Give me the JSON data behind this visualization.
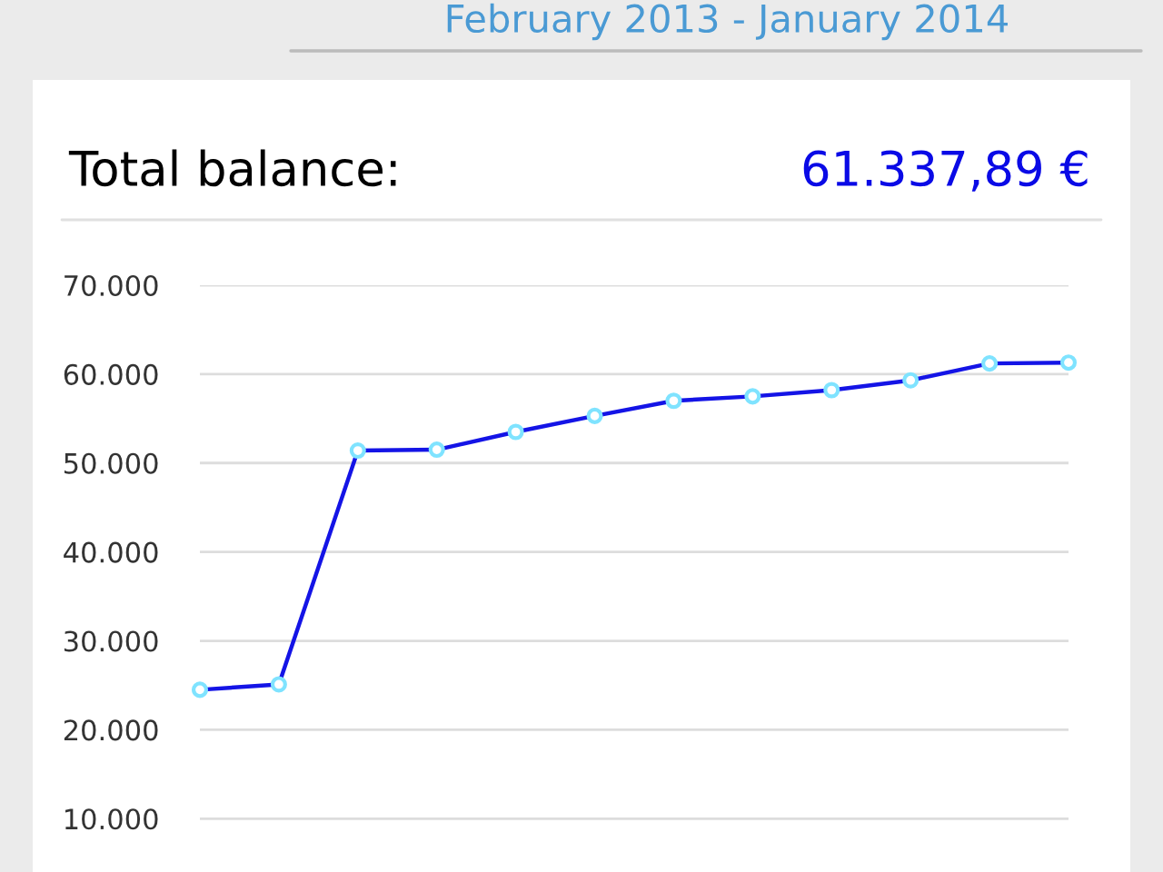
{
  "chart_data": {
    "type": "line",
    "title": "Total balance:",
    "subtitle": "February 2013 - January 2014",
    "annotations": [
      "61.337,89 €"
    ],
    "categories": [
      null,
      null,
      null,
      null,
      null,
      null,
      null,
      null,
      null,
      null,
      null,
      null
    ],
    "series": [
      {
        "color": "#1414e6",
        "values": [
          24500,
          25100,
          51400,
          51500,
          53500,
          55300,
          57000,
          57500,
          58200,
          59300,
          61200,
          61300
        ]
      }
    ],
    "ylim": [
      4000,
      70000
    ],
    "yticks": [
      {
        "value": 10000,
        "label": "10.000"
      },
      {
        "value": 20000,
        "label": "20.000"
      },
      {
        "value": 30000,
        "label": "30.000"
      },
      {
        "value": 40000,
        "label": "40.000"
      },
      {
        "value": 50000,
        "label": "50.000"
      },
      {
        "value": 60000,
        "label": "60.000"
      },
      {
        "value": 70000,
        "label": "70.000"
      }
    ],
    "tick_labels": "y",
    "grid": "y",
    "marker": "circle",
    "line_style": "solid",
    "legend": false
  }
}
